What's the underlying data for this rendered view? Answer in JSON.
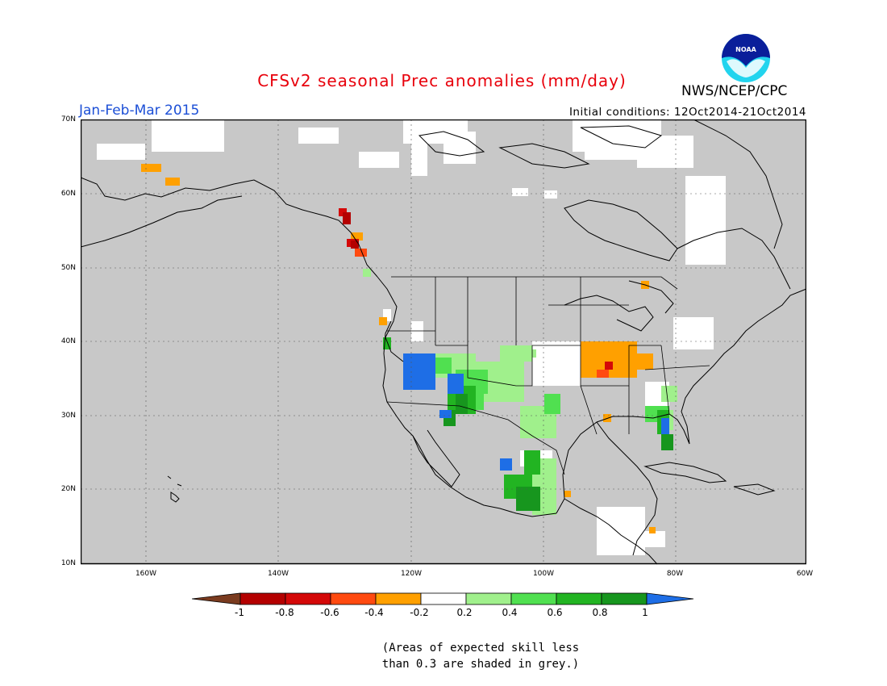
{
  "header": {
    "title": "CFSv2 seasonal Prec anomalies (mm/day)",
    "period": "Jan-Feb-Mar 2015",
    "initial_conditions": "Initial conditions: 12Oct2014-21Oct2014",
    "agency": "NWS/NCEP/CPC",
    "logo_text": "NOAA"
  },
  "map": {
    "lat_labels": [
      "70N",
      "60N",
      "50N",
      "40N",
      "30N",
      "20N",
      "10N"
    ],
    "lon_labels": [
      "160W",
      "140W",
      "120W",
      "100W",
      "80W",
      "60W"
    ],
    "background_color": "#c8c8c8"
  },
  "colorbar": {
    "labels": [
      "-1",
      "-0.8",
      "-0.6",
      "-0.4",
      "-0.2",
      "0.2",
      "0.4",
      "0.6",
      "0.8",
      "1"
    ],
    "colors": [
      "#7a3b1f",
      "#b40000",
      "#d40808",
      "#ff4a10",
      "#ffa000",
      "#ffffff",
      "#a0f08c",
      "#50e050",
      "#22b422",
      "#17961e",
      "#1e6ee6"
    ]
  },
  "note": {
    "line1": "(Areas of expected skill less",
    "line2": "than 0.3 are shaded in grey.)"
  }
}
